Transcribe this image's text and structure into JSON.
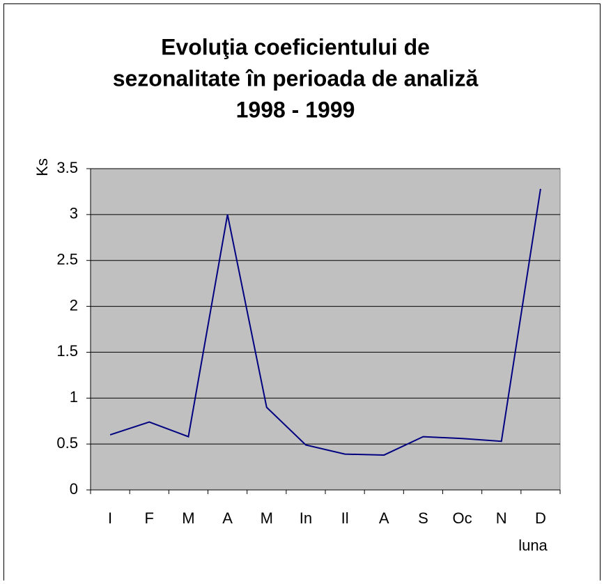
{
  "chart_data": {
    "type": "line",
    "title": [
      "Evoluţia coeficientului de",
      "sezonalitate în perioada de analiză",
      "1998 - 1999"
    ],
    "y_label": "Ks",
    "x_label": "luna",
    "categories": [
      "I",
      "F",
      "M",
      "A",
      "M",
      "In",
      "Il",
      "A",
      "S",
      "Oc",
      "N",
      "D"
    ],
    "series": [
      {
        "color": "#000080",
        "values": [
          0.6,
          0.74,
          0.58,
          3.0,
          0.9,
          0.49,
          0.39,
          0.38,
          0.58,
          0.56,
          0.53,
          3.28
        ]
      }
    ],
    "ylim": [
      0,
      3.5
    ],
    "yticks": [
      0,
      0.5,
      1,
      1.5,
      2,
      2.5,
      3,
      3.5
    ],
    "grid": true,
    "plot_background": "#c0c0c0"
  }
}
